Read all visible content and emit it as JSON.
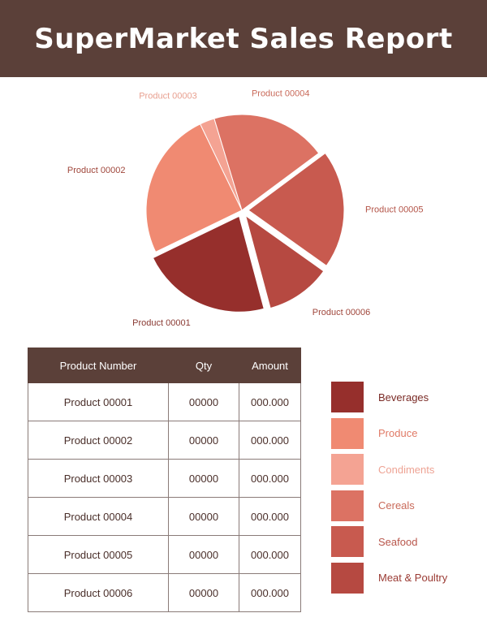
{
  "header": {
    "title": "SuperMarket Sales Report"
  },
  "chart_data": {
    "type": "pie",
    "title": "",
    "slices": [
      {
        "label": "Product 00001",
        "value": 22,
        "color": "#962f2c",
        "label_color": "#8a3a33",
        "exploded": true
      },
      {
        "label": "Product 00002",
        "value": 25,
        "color": "#f08a72",
        "label_color": "#a0473c",
        "exploded": false
      },
      {
        "label": "Product 00003",
        "value": 2.5,
        "color": "#f4a393",
        "label_color": "#e8a090",
        "exploded": false
      },
      {
        "label": "Product 00004",
        "value": 19.5,
        "color": "#dc7263",
        "label_color": "#c96a5a",
        "exploded": false
      },
      {
        "label": "Product 00005",
        "value": 20,
        "color": "#c85a4f",
        "label_color": "#b35448",
        "exploded": true
      },
      {
        "label": "Product 00006",
        "value": 11,
        "color": "#b64941",
        "label_color": "#a0473c",
        "exploded": true
      }
    ]
  },
  "table": {
    "headers": [
      "Product Number",
      "Qty",
      "Amount"
    ],
    "rows": [
      [
        "Product 00001",
        "00000",
        "000.000"
      ],
      [
        "Product 00002",
        "00000",
        "000.000"
      ],
      [
        "Product 00003",
        "00000",
        "000.000"
      ],
      [
        "Product 00004",
        "00000",
        "000.000"
      ],
      [
        "Product 00005",
        "00000",
        "000.000"
      ],
      [
        "Product 00006",
        "00000",
        "000.000"
      ]
    ]
  },
  "legend": {
    "items": [
      {
        "label": "Beverages",
        "color": "#962f2c",
        "text_color": "#7a2a25"
      },
      {
        "label": "Produce",
        "color": "#f08a72",
        "text_color": "#e07a66"
      },
      {
        "label": "Condiments",
        "color": "#f4a393",
        "text_color": "#eea394"
      },
      {
        "label": "Cereals",
        "color": "#dc7263",
        "text_color": "#c96a5a"
      },
      {
        "label": "Seafood",
        "color": "#c85a4f",
        "text_color": "#b8564b"
      },
      {
        "label": "Meat & Poultry",
        "color": "#b64941",
        "text_color": "#9a3a33"
      }
    ]
  }
}
